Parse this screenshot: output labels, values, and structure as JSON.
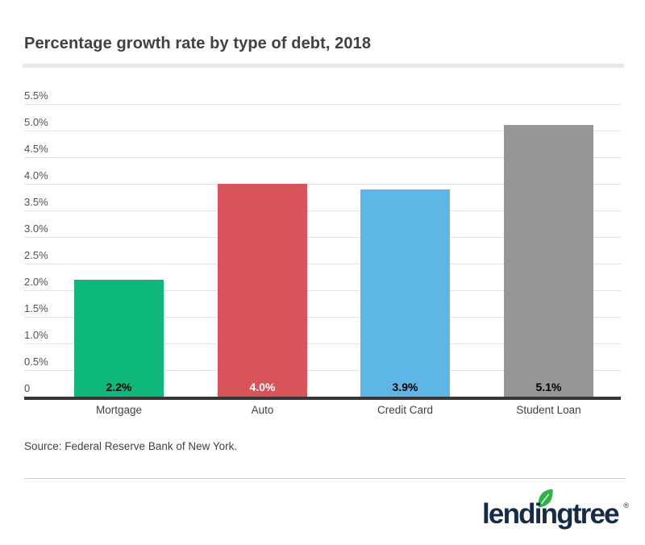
{
  "page": {
    "title": "Percentage growth rate by type of debt, 2018",
    "source": "Source: Federal Reserve Bank of New York.",
    "brand": {
      "wordmark": "lendingtree",
      "registered_mark": "®",
      "navy": "#152b46",
      "leaf_green": "#2db24a"
    }
  },
  "chart_data": {
    "type": "bar",
    "title": "Percentage growth rate by type of debt, 2018",
    "categories": [
      "Mortgage",
      "Auto",
      "Credit Card",
      "Student Loan"
    ],
    "values": [
      2.2,
      4.0,
      3.9,
      5.1
    ],
    "value_labels": [
      "2.2%",
      "4.0%",
      "3.9%",
      "5.1%"
    ],
    "bar_colors": [
      "#0db87a",
      "#d8545a",
      "#5eb6e6",
      "#969696"
    ],
    "value_label_colors": [
      "#000000",
      "#ffffff",
      "#000000",
      "#000000"
    ],
    "xlabel": "",
    "ylabel": "",
    "ylim": [
      0,
      5.5
    ],
    "grid": "horizontal gridlines every 0.5, labels above lines, zero axis emphasized",
    "legend": "none",
    "yticks": [
      {
        "v": 0,
        "label": "0"
      },
      {
        "v": 0.5,
        "label": "0.5%"
      },
      {
        "v": 1.0,
        "label": "1.0%"
      },
      {
        "v": 1.5,
        "label": "1.5%"
      },
      {
        "v": 2.0,
        "label": "2.0%"
      },
      {
        "v": 2.5,
        "label": "2.5%"
      },
      {
        "v": 3.0,
        "label": "3.0%"
      },
      {
        "v": 3.5,
        "label": "3.5%"
      },
      {
        "v": 4.0,
        "label": "4.0%"
      },
      {
        "v": 4.5,
        "label": "4.5%"
      },
      {
        "v": 5.0,
        "label": "5.0%"
      },
      {
        "v": 5.5,
        "label": "5.5%"
      }
    ]
  }
}
